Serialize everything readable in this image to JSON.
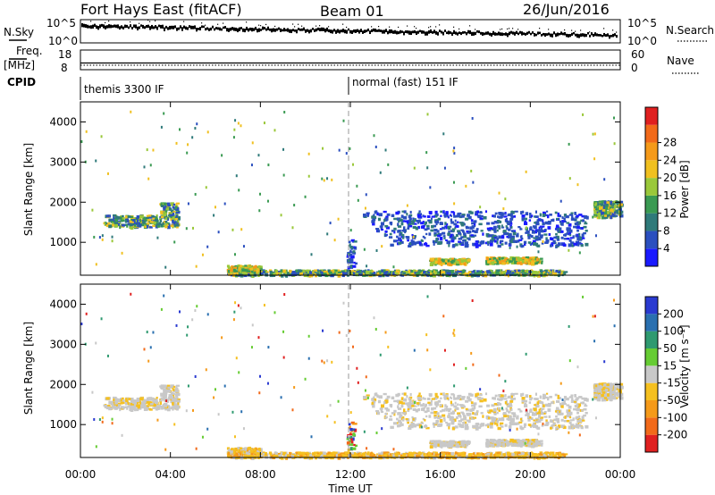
{
  "header": {
    "station": "Fort Hays East (fitACF)",
    "beam": "Beam 01",
    "date": "26/Jun/2016"
  },
  "panels": {
    "nsky_label": "N.Sky",
    "nsky_ticks": [
      "10^5",
      "10^0"
    ],
    "nsearch_label": "N.Search",
    "nsearch_ticks": [
      "10^5",
      "10^0"
    ],
    "freq_label": "Freq.",
    "freq_unit": "[MHz]",
    "freq_ticks": [
      "18",
      "8"
    ],
    "nave_label": "Nave",
    "nave_ticks": [
      "60",
      "0"
    ],
    "cpid_label": "CPID",
    "cpid_modes": [
      "themis 3300 IF",
      "normal (fast) 151 IF"
    ]
  },
  "axes": {
    "ylabel": "Slant Range [km]",
    "xlabel": "Time UT",
    "y_ticks": [
      "1000",
      "2000",
      "3000",
      "4000"
    ],
    "x_ticks": [
      "00:00",
      "04:00",
      "08:00",
      "12:00",
      "16:00",
      "20:00",
      "00:00"
    ]
  },
  "power_colorbar": {
    "label": "Power [dB]",
    "ticks": [
      "4",
      "8",
      "12",
      "16",
      "20",
      "24",
      "28"
    ],
    "colors": [
      "#1a1aff",
      "#2b4fbf",
      "#2f7a7a",
      "#3a9a52",
      "#9ac83a",
      "#f0c020",
      "#f59a1a",
      "#f26a1a",
      "#e02020"
    ]
  },
  "velocity_colorbar": {
    "label": "Velocity [m s⁻¹]",
    "ticks": [
      "200",
      "100",
      "50",
      "15",
      "-15",
      "-50",
      "-100",
      "-200"
    ],
    "colors": [
      "#2a3ad0",
      "#2a70b0",
      "#2f9a70",
      "#66cc33",
      "#c8c8c8",
      "#f5c020",
      "#f59a1a",
      "#f26a1a",
      "#e02020"
    ]
  },
  "chart_data": {
    "type": "heatmap",
    "x_range_hours": [
      0,
      24
    ],
    "y_range_km": [
      180,
      4500
    ],
    "cpid_switch_time": "12:00",
    "features": [
      {
        "name": "near-range band",
        "t_start": 6.5,
        "t_end": 21.5,
        "r_start": 200,
        "r_end": 450
      },
      {
        "name": "echo 01-04h",
        "t_start": 1.0,
        "t_end": 4.3,
        "r_start": 1350,
        "r_end": 2000
      },
      {
        "name": "echo 23-24h",
        "t_start": 22.8,
        "t_end": 24.0,
        "r_start": 1600,
        "r_end": 2100
      },
      {
        "name": "echo 16-17h",
        "t_start": 15.5,
        "t_end": 17.2,
        "r_start": 400,
        "r_end": 650
      },
      {
        "name": "echo 18-20h",
        "t_start": 18.0,
        "t_end": 20.5,
        "r_start": 450,
        "r_end": 700
      }
    ]
  }
}
